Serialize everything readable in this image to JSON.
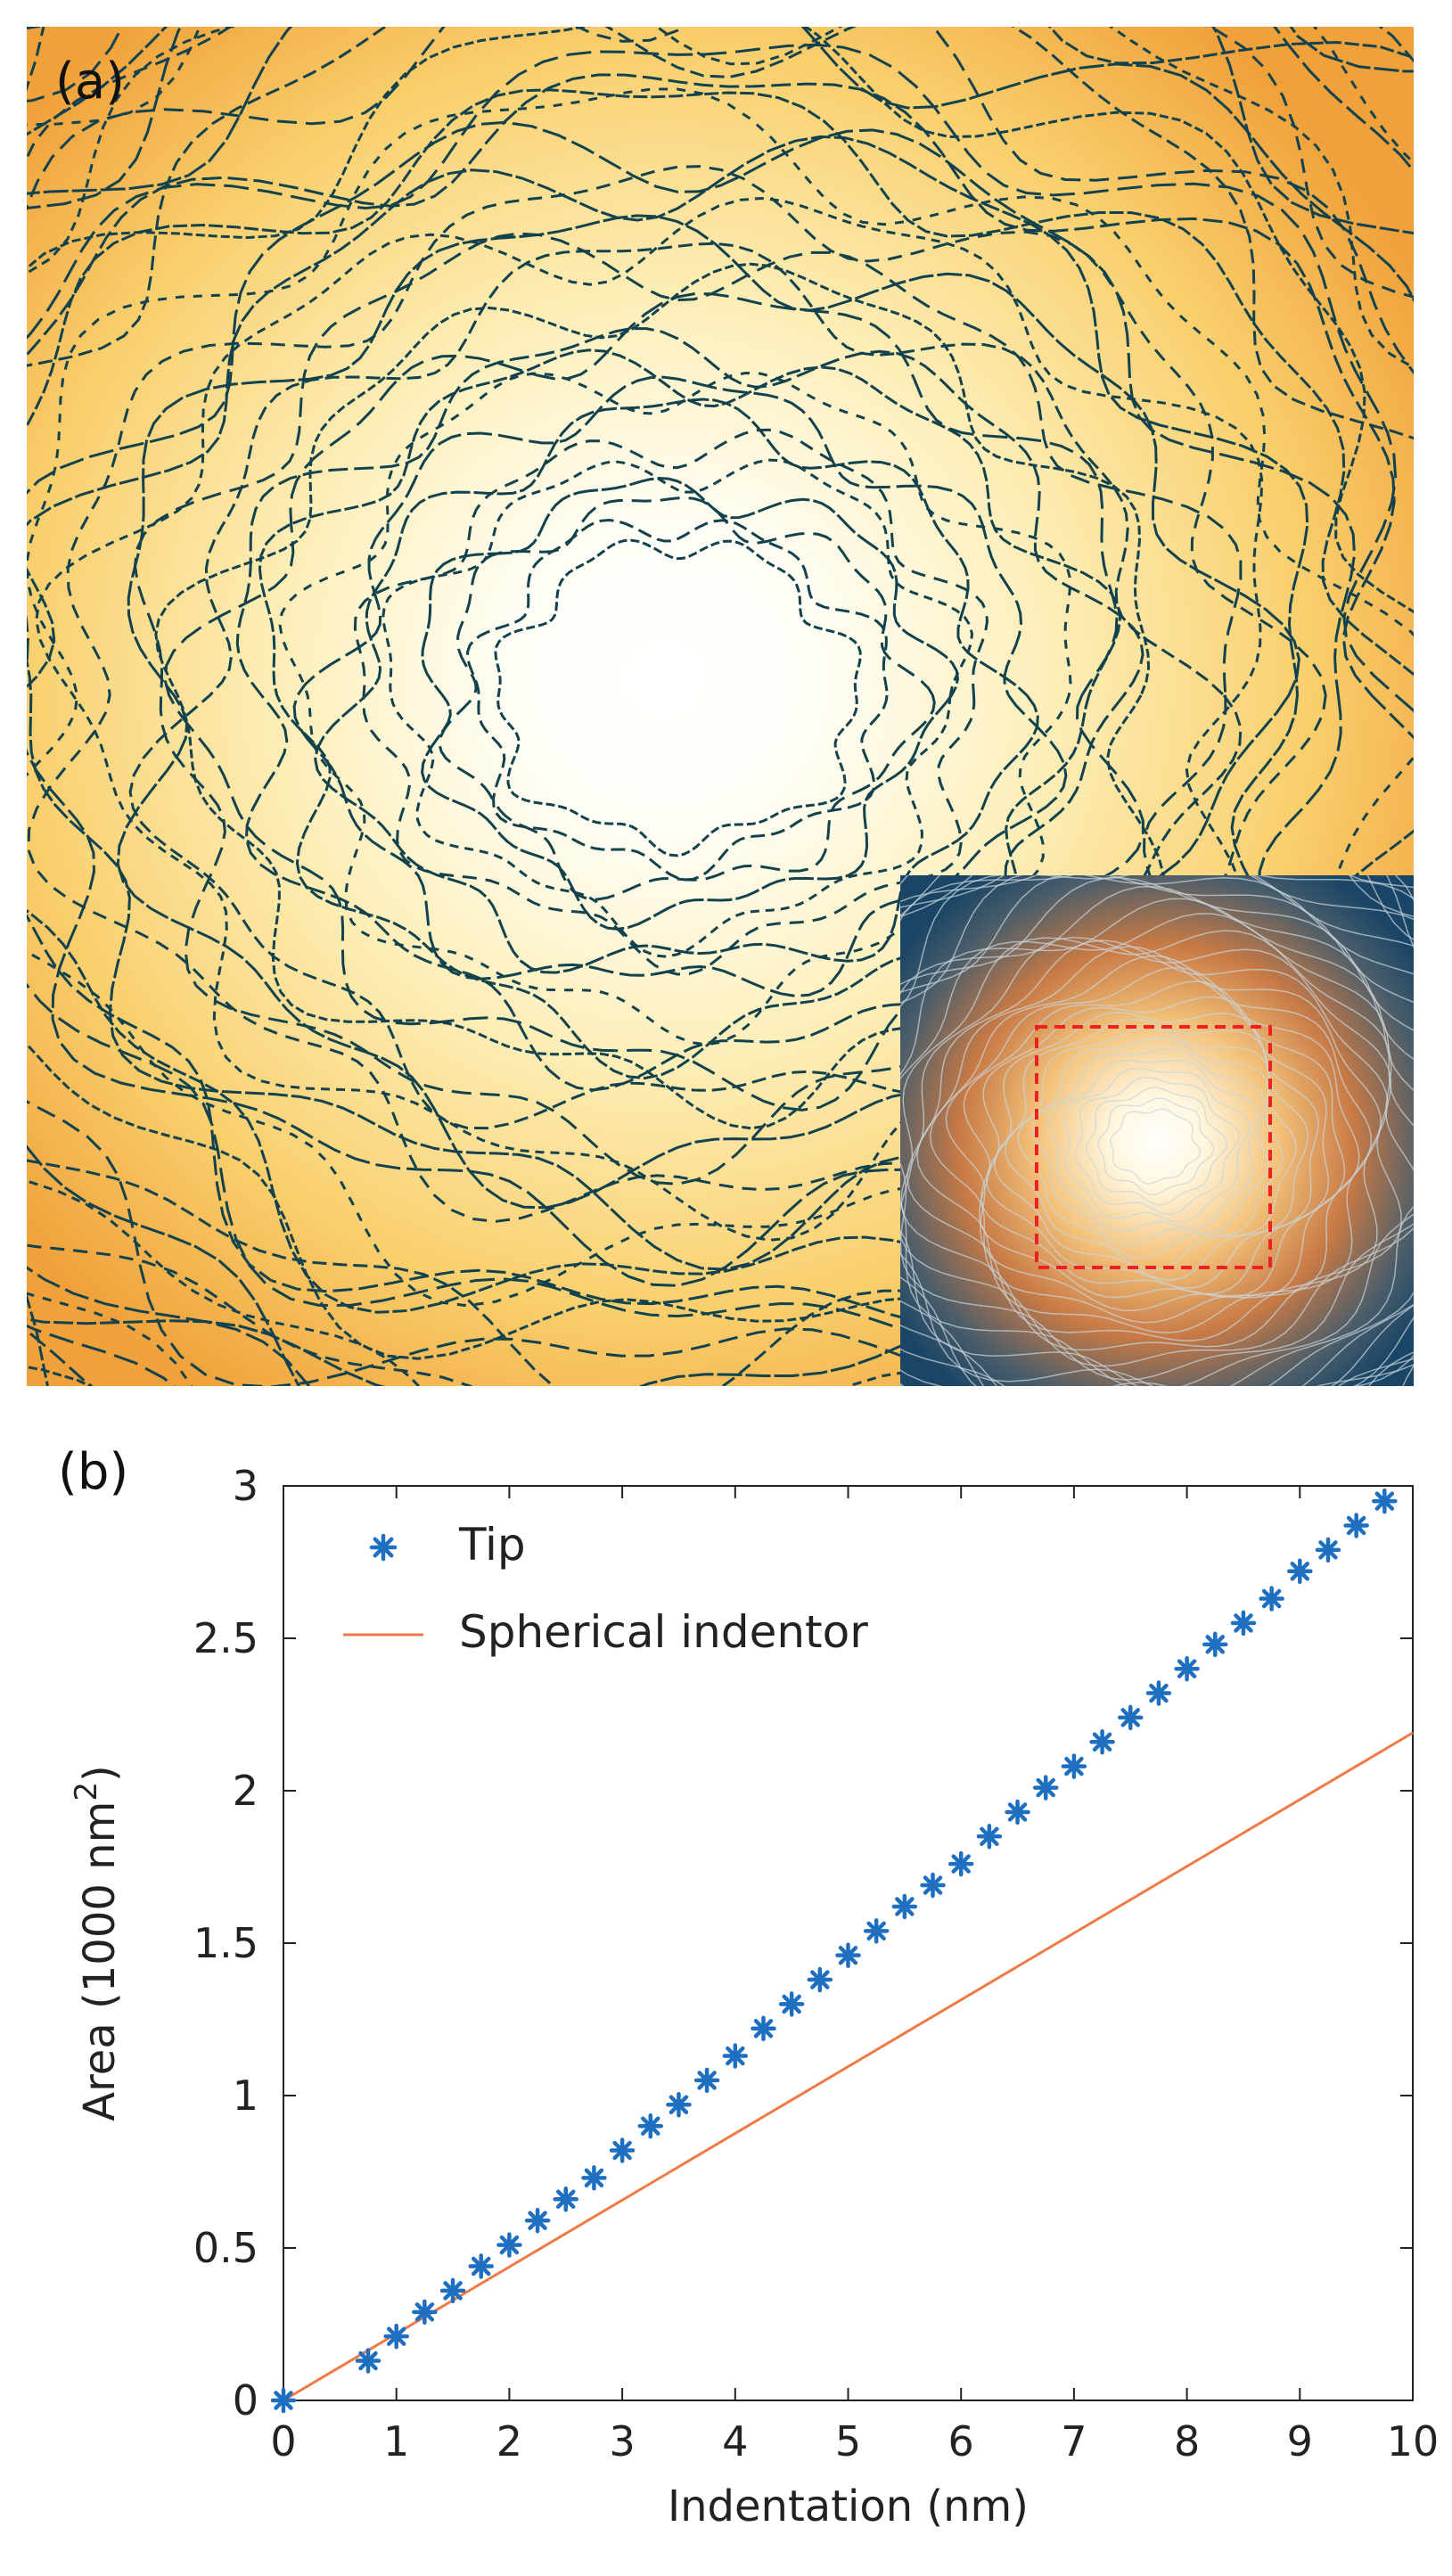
{
  "panel_a": {
    "label": "(a)",
    "description_colors": {
      "background_center": "#fffef6",
      "background_edge": "#f3ad3a",
      "contour_line": "#12424e",
      "inset_dashed_box": "#ee2222",
      "inset_edge": "#1f4a66"
    }
  },
  "panel_b": {
    "label": "(b)"
  },
  "chart_data": {
    "type": "scatter",
    "xlabel": "Indentation (nm)",
    "ylabel": "Area (1000 nm²)",
    "ylabel_parts": {
      "prefix": "Area (1000 nm",
      "superscript": "2",
      "suffix": ")"
    },
    "xlim": [
      0,
      10
    ],
    "ylim": [
      0,
      3
    ],
    "xticks": [
      0,
      1,
      2,
      3,
      4,
      5,
      6,
      7,
      8,
      9,
      10
    ],
    "yticks": [
      0,
      0.5,
      1,
      1.5,
      2,
      2.5,
      3
    ],
    "ytick_labels": [
      "0",
      "0.5",
      "1",
      "1.5",
      "2",
      "2.5",
      "3"
    ],
    "grid": false,
    "legend_placement": "top-left",
    "series": [
      {
        "name": "Tip",
        "kind": "markers",
        "marker": "asterisk",
        "color": "#1f6fc1",
        "x": [
          0,
          0.75,
          1.0,
          1.25,
          1.5,
          1.75,
          2.0,
          2.25,
          2.5,
          2.75,
          3.0,
          3.25,
          3.5,
          3.75,
          4.0,
          4.25,
          4.5,
          4.75,
          5.0,
          5.25,
          5.5,
          5.75,
          6.0,
          6.25,
          6.5,
          6.75,
          7.0,
          7.25,
          7.5,
          7.75,
          8.0,
          8.25,
          8.5,
          8.75,
          9.0,
          9.25,
          9.5,
          9.75
        ],
        "y": [
          0,
          0.13,
          0.21,
          0.29,
          0.36,
          0.44,
          0.51,
          0.59,
          0.66,
          0.73,
          0.82,
          0.9,
          0.97,
          1.05,
          1.13,
          1.22,
          1.3,
          1.38,
          1.46,
          1.54,
          1.62,
          1.69,
          1.76,
          1.85,
          1.93,
          2.01,
          2.08,
          2.16,
          2.24,
          2.32,
          2.4,
          2.48,
          2.55,
          2.63,
          2.72,
          2.79,
          2.87,
          2.95
        ]
      },
      {
        "name": "Spherical indentor",
        "kind": "line",
        "color": "#f07a45",
        "x": [
          0,
          10
        ],
        "y": [
          0,
          2.19
        ]
      }
    ]
  }
}
